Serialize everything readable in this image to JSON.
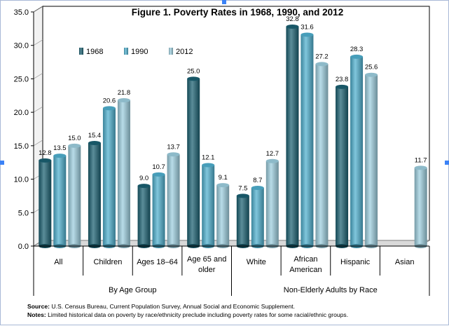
{
  "chart_data": {
    "type": "bar",
    "title": "Figure 1. Poverty Rates in 1968, 1990, and 2012",
    "ylim": [
      0,
      35
    ],
    "yticks": [
      "0.0",
      "5.0",
      "10.0",
      "15.0",
      "20.0",
      "25.0",
      "30.0",
      "35.0"
    ],
    "legend_position": "top-left",
    "grid": true,
    "categories": [
      "All",
      "Children",
      "Ages 18–64",
      "Age 65 and older",
      "White",
      "African American",
      "Hispanic",
      "Asian"
    ],
    "category_lines": [
      [
        "All"
      ],
      [
        "Children"
      ],
      [
        "Ages 18–64"
      ],
      [
        "Age 65 and",
        "older"
      ],
      [
        "White"
      ],
      [
        "African",
        "American"
      ],
      [
        "Hispanic"
      ],
      [
        "Asian"
      ]
    ],
    "groups": [
      {
        "label": "By Age Group",
        "categories": [
          "All",
          "Children",
          "Ages 18–64",
          "Age 65 and older"
        ]
      },
      {
        "label": "Non-Elderly Adults by Race",
        "categories": [
          "White",
          "African American",
          "Hispanic",
          "Asian"
        ]
      }
    ],
    "series": [
      {
        "name": "1968",
        "color": "#1b6172",
        "values": [
          12.8,
          15.4,
          9.0,
          25.0,
          7.5,
          32.8,
          23.8,
          null
        ],
        "labels": [
          "12.8",
          "15.4",
          "9.0",
          "25.0",
          "7.5",
          "32.8",
          "23.8",
          ""
        ]
      },
      {
        "name": "1990",
        "color": "#4fb0cf",
        "values": [
          13.5,
          20.6,
          10.7,
          12.1,
          8.7,
          31.6,
          28.3,
          null
        ],
        "labels": [
          "13.5",
          "20.6",
          "10.7",
          "12.1",
          "8.7",
          "31.6",
          "28.3",
          ""
        ]
      },
      {
        "name": "2012",
        "color": "#9dcfdf",
        "values": [
          15.0,
          21.8,
          13.7,
          9.1,
          12.7,
          27.2,
          25.6,
          11.7
        ],
        "labels": [
          "15.0",
          "21.8",
          "13.7",
          "9.1",
          "12.7",
          "27.2",
          "25.6",
          "11.7"
        ]
      }
    ]
  },
  "notes": {
    "source_label": "Source:",
    "source_text": " U.S. Census Bureau, Current Population Survey, Annual Social and Economic Supplement.",
    "notes_label": "Notes:",
    "notes_text": " Limited historical data on poverty by race/ethnicity preclude including poverty rates for some racial/ethnic groups."
  }
}
